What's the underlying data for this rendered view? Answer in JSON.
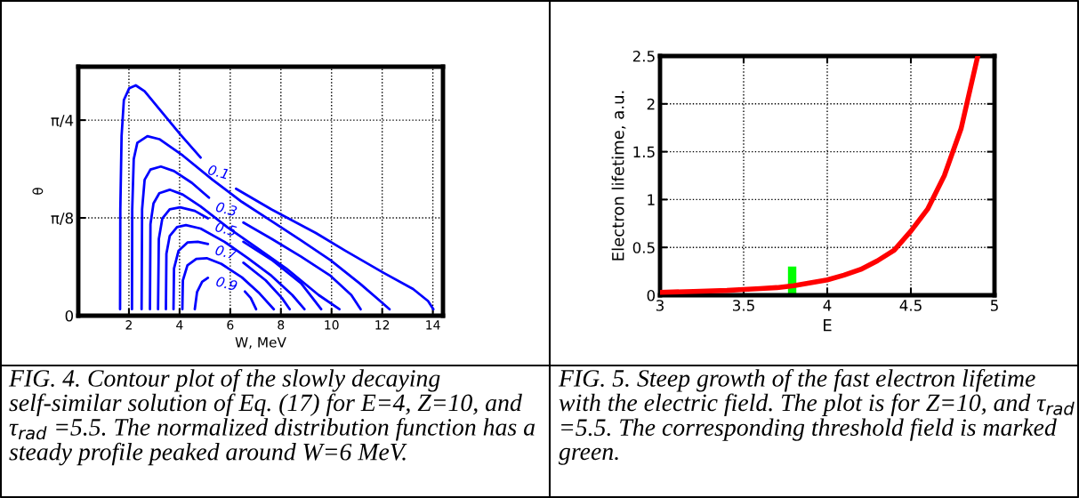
{
  "chart_data": [
    {
      "type": "line",
      "xlabel": "W, MeV",
      "ylabel": "θ",
      "xlim": [
        0,
        14.4
      ],
      "ylim": [
        0,
        1.0
      ],
      "xticks": [
        2,
        4,
        6,
        8,
        10,
        12,
        14
      ],
      "yticks": [
        0,
        {
          "value": 0.3927,
          "label": "π/8"
        },
        {
          "value": 0.7854,
          "label": "π/4"
        }
      ],
      "grid": true,
      "line_style": "solid",
      "marker": "none",
      "series": [
        {
          "name": "0.1",
          "color": "#0000ff",
          "x": [
            1.65,
            1.66,
            1.71,
            1.8,
            2.01,
            2.27,
            2.62,
            3.2,
            4.02,
            4.83,
            5.5,
            6.23,
            7.63,
            9.38,
            10.54,
            12.06,
            13.22,
            13.81,
            14.02
          ],
          "values": [
            0.026,
            0.427,
            0.723,
            0.866,
            0.913,
            0.925,
            0.901,
            0.83,
            0.729,
            0.635,
            null,
            0.51,
            0.427,
            0.332,
            0.261,
            0.172,
            0.107,
            0.059,
            0.026
          ]
        },
        {
          "color": "#0000ff",
          "x": [
            2.12,
            2.13,
            2.19,
            2.33,
            2.73,
            3.2,
            4.13,
            5.3,
            6.46,
            7.63,
            8.8,
            9.96,
            11.13,
            11.94,
            12.29
          ],
          "values": [
            0.026,
            0.427,
            0.629,
            0.694,
            0.721,
            0.709,
            0.643,
            0.546,
            0.457,
            0.38,
            0.302,
            0.223,
            0.128,
            0.057,
            0.026
          ]
        },
        {
          "name": "0.3",
          "color": "#0000ff",
          "x": [
            2.5,
            2.52,
            2.62,
            2.85,
            3.26,
            3.78,
            4.48,
            5.16,
            5.8,
            6.52,
            7.63,
            8.8,
            9.96,
            10.78,
            11.15
          ],
          "values": [
            0.026,
            0.427,
            0.546,
            0.587,
            0.599,
            0.581,
            0.534,
            0.474,
            null,
            0.374,
            0.309,
            0.237,
            0.16,
            0.083,
            0.026
          ]
        },
        {
          "color": "#0000ff",
          "x": [
            2.83,
            2.85,
            2.97,
            3.2,
            3.61,
            4.13,
            4.83,
            5.88,
            7.05,
            8.21,
            9.49,
            10.31
          ],
          "values": [
            0.026,
            0.368,
            0.451,
            0.492,
            0.506,
            0.486,
            0.439,
            0.356,
            0.273,
            0.19,
            0.083,
            0.026
          ]
        },
        {
          "name": "0.5",
          "color": "#0000ff",
          "x": [
            3.15,
            3.18,
            3.32,
            3.61,
            4.02,
            4.6,
            5.12,
            5.8,
            6.52,
            7.63,
            8.8,
            9.59
          ],
          "values": [
            0.026,
            0.308,
            0.391,
            0.427,
            0.435,
            0.421,
            0.391,
            null,
            0.297,
            0.225,
            0.13,
            0.026
          ]
        },
        {
          "color": "#0000ff",
          "x": [
            3.46,
            3.48,
            3.61,
            3.9,
            4.25,
            4.83,
            5.77,
            6.7,
            7.63,
            8.45,
            8.93
          ],
          "values": [
            0.026,
            0.249,
            0.32,
            0.356,
            0.364,
            0.35,
            0.297,
            0.231,
            0.16,
            0.083,
            0.026
          ]
        },
        {
          "name": "0.7",
          "color": "#0000ff",
          "x": [
            3.76,
            3.78,
            3.96,
            4.31,
            4.72,
            5.12,
            5.8,
            6.52,
            7.4,
            8.04,
            8.35
          ],
          "values": [
            0.026,
            0.19,
            0.261,
            0.294,
            0.297,
            0.288,
            null,
            0.213,
            0.142,
            0.071,
            0.026
          ]
        },
        {
          "color": "#0000ff",
          "x": [
            4.11,
            4.13,
            4.31,
            4.66,
            5.07,
            5.65,
            6.46,
            7.16,
            7.72
          ],
          "values": [
            0.026,
            0.142,
            0.202,
            0.228,
            0.231,
            0.208,
            0.154,
            0.089,
            0.026
          ]
        },
        {
          "name": "0.9",
          "color": "#0000ff",
          "x": [
            4.6,
            4.69,
            4.89,
            5.12,
            5.8,
            6.58,
            6.81,
            7.02
          ],
          "values": [
            0.026,
            0.095,
            0.136,
            0.152,
            null,
            0.097,
            0.071,
            0.026
          ]
        }
      ],
      "annotations": [
        "FIG. 4. Contour plot of the slowly decaying self-similar solution of Eq. (17) for E=4, Z=10, and τ$_{rad}$ =5.5. The normalized distribution function has a steady profile peaked around W=6 MeV."
      ]
    },
    {
      "type": "line",
      "xlabel": "E",
      "ylabel": "Electron lifetime, a.u.",
      "xlim": [
        3,
        5
      ],
      "ylim": [
        0,
        2.5
      ],
      "xticks": [
        3,
        3.5,
        4,
        4.5,
        5
      ],
      "yticks": [
        0,
        0.5,
        1,
        1.5,
        2,
        2.5
      ],
      "grid": true,
      "line_style": "solid",
      "marker": "none",
      "series": [
        {
          "color": "#ff0000",
          "x": [
            3.0,
            3.2,
            3.4,
            3.5,
            3.6,
            3.7,
            3.8,
            3.9,
            4.0,
            4.1,
            4.2,
            4.3,
            4.4,
            4.5,
            4.6,
            4.7,
            4.8,
            4.9
          ],
          "values": [
            0.03,
            0.04,
            0.05,
            0.06,
            0.07,
            0.08,
            0.1,
            0.13,
            0.16,
            0.21,
            0.27,
            0.36,
            0.47,
            0.67,
            0.9,
            1.25,
            1.74,
            2.5
          ]
        },
        {
          "type": "bar",
          "color": "#00ff00",
          "x": [
            3.79
          ],
          "values": [
            0.3
          ]
        }
      ],
      "annotations": [
        "FIG. 5. Steep growth of the fast electron lifetime with the electric field. The plot is for Z=10, and τ$_{rad}$ =5.5. The corresponding threshold field is marked green."
      ]
    }
  ]
}
